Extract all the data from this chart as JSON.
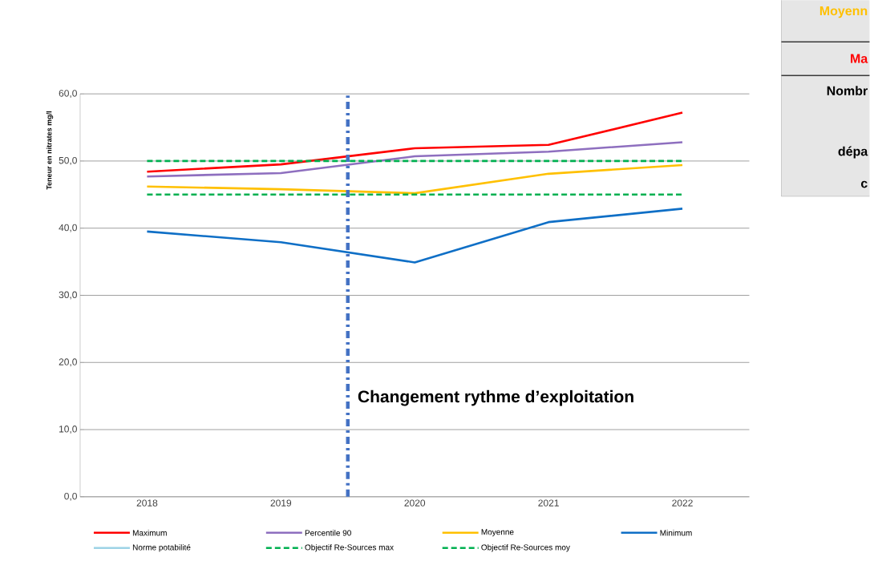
{
  "chart_data": {
    "type": "line",
    "ylabel": "Teneur en nitrates mg/l",
    "x": [
      2018,
      2019,
      2020,
      2021,
      2022
    ],
    "xlim": [
      2017.5,
      2022.5
    ],
    "xticks": [
      2018,
      2019,
      2020,
      2021,
      2022
    ],
    "ylim": [
      0,
      60
    ],
    "yticks": [
      {
        "value": 0,
        "label": "0,0"
      },
      {
        "value": 10,
        "label": "10,0"
      },
      {
        "value": 20,
        "label": "20,0"
      },
      {
        "value": 30,
        "label": "30,0"
      },
      {
        "value": 40,
        "label": "40,0"
      },
      {
        "value": 50,
        "label": "50,0"
      },
      {
        "value": 60,
        "label": "60,0"
      }
    ],
    "grid": "y",
    "legend": "bottom",
    "marker": "none",
    "series": [
      {
        "name": "Maximum",
        "color": "#ff0000",
        "values": [
          48.4,
          49.5,
          51.9,
          52.4,
          57.2
        ]
      },
      {
        "name": "Percentile 90",
        "color": "#8e6fbf",
        "values": [
          47.7,
          48.2,
          50.7,
          51.4,
          52.8
        ]
      },
      {
        "name": "Moyenne",
        "color": "#ffc000",
        "values": [
          46.2,
          45.8,
          45.2,
          48.1,
          49.4
        ]
      },
      {
        "name": "Minimum",
        "color": "#0f6fc6",
        "values": [
          39.5,
          37.9,
          34.9,
          40.9,
          42.9
        ]
      },
      {
        "name": "Norme potabilité",
        "color": "#9dd3e6",
        "values": [
          null,
          null,
          null,
          null,
          null
        ]
      },
      {
        "name": "Objectif Re-Sources max",
        "color": "#00b050",
        "line_style": "dashed",
        "values": [
          50,
          50,
          50,
          50,
          50
        ]
      },
      {
        "name": "Objectif Re-Sources moy",
        "color": "#00b050",
        "line_style": "dashed",
        "values": [
          45,
          45,
          45,
          45,
          45
        ]
      }
    ],
    "ref_lines": [
      {
        "axis": "x",
        "value": 2019.5,
        "label": "Changement rythme d’exploitation",
        "color": "#4472c4",
        "line_style": "dashdot"
      }
    ],
    "annotations": [
      "Moyenn",
      "Ma",
      "Nombr",
      "dépa",
      "c"
    ]
  }
}
